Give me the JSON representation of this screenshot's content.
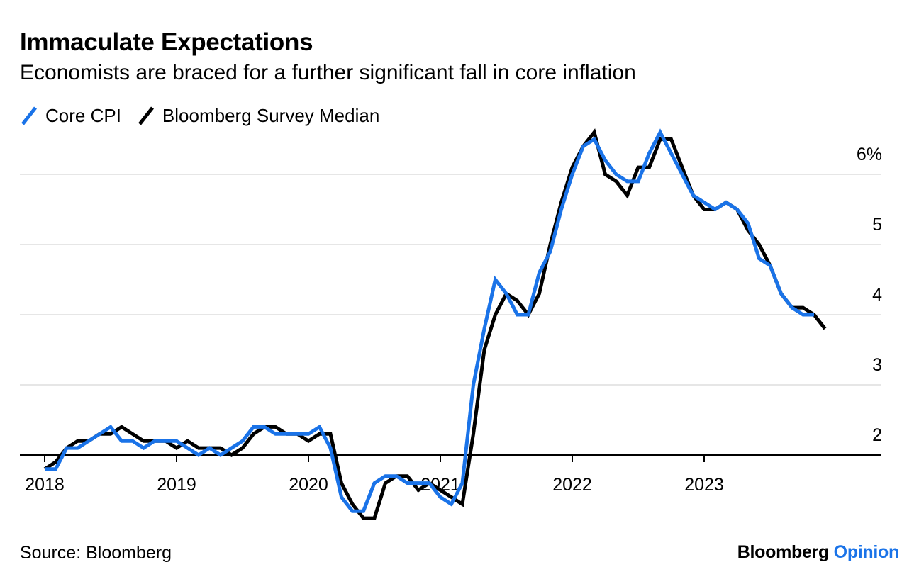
{
  "title": "Immaculate Expectations",
  "subtitle": "Economists are braced for a further significant fall in core inflation",
  "source": "Source: Bloomberg",
  "brand": {
    "name": "Bloomberg",
    "section": "Opinion"
  },
  "colors": {
    "core_cpi": "#1a73e8",
    "survey": "#000000",
    "grid": "#e6e6e6",
    "brand_accent": "#1a73e8"
  },
  "chart_data": {
    "type": "line",
    "title": "Immaculate Expectations",
    "subtitle": "Economists are braced for a further significant fall in core inflation",
    "xlabel": "",
    "ylabel": "",
    "ylim": [
      1.7,
      6.5
    ],
    "y_ticks": [
      2,
      3,
      4,
      5,
      6
    ],
    "y_tick_labels": [
      "2",
      "3",
      "4",
      "5",
      "6%"
    ],
    "x_ticks": [
      2018,
      2019,
      2020,
      2021,
      2022,
      2023
    ],
    "x_tick_labels": [
      "2018",
      "2019",
      "2020",
      "2021",
      "2022",
      "2023"
    ],
    "grid": true,
    "y_axis_side": "right",
    "legend": "top-left",
    "x_unit": "monthly, Jan 2018 – Dec 2023",
    "series": [
      {
        "name": "Core CPI",
        "color": "#1a73e8",
        "x_start": "2018-01",
        "frequency": "monthly",
        "values": [
          1.8,
          1.8,
          2.1,
          2.1,
          2.2,
          2.3,
          2.4,
          2.2,
          2.2,
          2.1,
          2.2,
          2.2,
          2.2,
          2.1,
          2.0,
          2.1,
          2.0,
          2.1,
          2.2,
          2.4,
          2.4,
          2.3,
          2.3,
          2.3,
          2.3,
          2.4,
          2.1,
          1.4,
          1.2,
          1.2,
          1.6,
          1.7,
          1.7,
          1.6,
          1.6,
          1.6,
          1.4,
          1.3,
          1.6,
          3.0,
          3.8,
          4.5,
          4.3,
          4.0,
          4.0,
          4.6,
          4.9,
          5.5,
          6.0,
          6.4,
          6.5,
          6.2,
          6.0,
          5.9,
          5.9,
          6.3,
          6.6,
          6.3,
          6.0,
          5.7,
          5.6,
          5.5,
          5.6,
          5.5,
          5.3,
          4.8,
          4.7,
          4.3,
          4.1,
          4.0,
          4.0
        ]
      },
      {
        "name": "Bloomberg Survey Median",
        "color": "#000000",
        "x_start": "2018-01",
        "frequency": "monthly",
        "values": [
          1.8,
          1.9,
          2.1,
          2.2,
          2.2,
          2.3,
          2.3,
          2.4,
          2.3,
          2.2,
          2.2,
          2.2,
          2.1,
          2.2,
          2.1,
          2.1,
          2.1,
          2.0,
          2.1,
          2.3,
          2.4,
          2.4,
          2.3,
          2.3,
          2.2,
          2.3,
          2.3,
          1.6,
          1.3,
          1.1,
          1.1,
          1.6,
          1.7,
          1.7,
          1.5,
          1.6,
          1.5,
          1.4,
          1.3,
          2.3,
          3.5,
          4.0,
          4.3,
          4.2,
          4.0,
          4.3,
          5.0,
          5.6,
          6.1,
          6.4,
          6.6,
          6.0,
          5.9,
          5.7,
          6.1,
          6.1,
          6.5,
          6.5,
          6.1,
          5.7,
          5.5,
          5.5,
          5.6,
          5.5,
          5.2,
          5.0,
          4.7,
          4.3,
          4.1,
          4.1,
          4.0,
          3.8
        ]
      }
    ]
  }
}
